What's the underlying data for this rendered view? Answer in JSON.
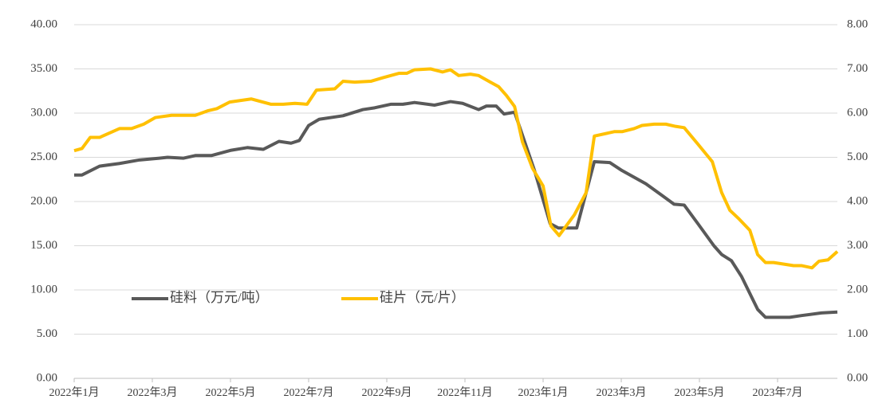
{
  "chart_data": {
    "type": "line",
    "xlim": [
      0,
      19.53
    ],
    "xticks": [
      {
        "value": 0,
        "label": "2022年1月"
      },
      {
        "value": 2,
        "label": "2022年3月"
      },
      {
        "value": 4,
        "label": "2022年5月"
      },
      {
        "value": 6,
        "label": "2022年7月"
      },
      {
        "value": 8,
        "label": "2022年9月"
      },
      {
        "value": 10,
        "label": "2022年11月"
      },
      {
        "value": 12,
        "label": "2023年1月"
      },
      {
        "value": 14,
        "label": "2023年3月"
      },
      {
        "value": 16,
        "label": "2023年5月"
      },
      {
        "value": 18,
        "label": "2023年7月"
      }
    ],
    "ylim": [
      0,
      40
    ],
    "yticks": [
      {
        "value": 0,
        "label": "0.00"
      },
      {
        "value": 5,
        "label": "5.00"
      },
      {
        "value": 10,
        "label": "10.00"
      },
      {
        "value": 15,
        "label": "15.00"
      },
      {
        "value": 20,
        "label": "20.00"
      },
      {
        "value": 25,
        "label": "25.00"
      },
      {
        "value": 30,
        "label": "30.00"
      },
      {
        "value": 35,
        "label": "35.00"
      },
      {
        "value": 40,
        "label": "40.00"
      }
    ],
    "y2lim": [
      0,
      8
    ],
    "y2ticks": [
      {
        "value": 0,
        "label": "0.00"
      },
      {
        "value": 1,
        "label": "1.00"
      },
      {
        "value": 2,
        "label": "2.00"
      },
      {
        "value": 3,
        "label": "3.00"
      },
      {
        "value": 4,
        "label": "4.00"
      },
      {
        "value": 5,
        "label": "5.00"
      },
      {
        "value": 6,
        "label": "6.00"
      },
      {
        "value": 7,
        "label": "7.00"
      },
      {
        "value": 8,
        "label": "8.00"
      }
    ],
    "grid": true,
    "series": [
      {
        "name": "硅料（万元/吨）",
        "color": "#595959",
        "axis": "y",
        "x": [
          0,
          0.2,
          0.65,
          1.16,
          1.67,
          2.18,
          2.39,
          2.8,
          3.1,
          3.51,
          4.02,
          4.43,
          4.84,
          5.24,
          5.55,
          5.76,
          6.0,
          6.27,
          6.88,
          7.39,
          7.69,
          8.1,
          8.41,
          8.71,
          9.22,
          9.63,
          9.94,
          10.35,
          10.55,
          10.8,
          11.0,
          11.27,
          11.78,
          12.18,
          12.39,
          12.86,
          13.31,
          13.71,
          14.02,
          14.63,
          15.04,
          15.35,
          15.61,
          15.96,
          16.37,
          16.57,
          16.82,
          17.08,
          17.49,
          17.69,
          18.31,
          18.61,
          19.12,
          19.53
        ],
        "values": [
          23.0,
          23.0,
          24.0,
          24.3,
          24.7,
          24.9,
          25.0,
          24.9,
          25.2,
          25.2,
          25.8,
          26.1,
          25.9,
          26.8,
          26.6,
          26.9,
          28.6,
          29.3,
          29.7,
          30.4,
          30.6,
          31.0,
          31.0,
          31.2,
          30.9,
          31.3,
          31.1,
          30.4,
          30.8,
          30.8,
          29.9,
          30.1,
          23.5,
          17.5,
          17.0,
          17.0,
          24.5,
          24.4,
          23.5,
          22.0,
          20.7,
          19.7,
          19.6,
          17.5,
          15.0,
          14.0,
          13.3,
          11.5,
          7.8,
          6.9,
          6.9,
          7.1,
          7.4,
          7.5
        ]
      },
      {
        "name": "硅片（元/片）",
        "color": "#ffc000",
        "axis": "y2",
        "x": [
          0,
          0.2,
          0.41,
          0.65,
          1.16,
          1.47,
          1.78,
          2.08,
          2.49,
          3.1,
          3.41,
          3.65,
          3.98,
          4.53,
          5.04,
          5.35,
          5.65,
          5.96,
          6.2,
          6.67,
          6.88,
          7.18,
          7.59,
          7.9,
          8.31,
          8.51,
          8.71,
          9.12,
          9.43,
          9.63,
          9.84,
          10.14,
          10.35,
          10.65,
          10.86,
          11.06,
          11.27,
          11.47,
          11.73,
          12.0,
          12.2,
          12.41,
          12.8,
          13.1,
          13.31,
          13.82,
          14.02,
          14.33,
          14.53,
          14.84,
          15.14,
          15.39,
          15.61,
          15.96,
          16.33,
          16.57,
          16.78,
          17.02,
          17.29,
          17.49,
          17.69,
          17.9,
          18.41,
          18.61,
          18.88,
          19.06,
          19.29,
          19.53
        ],
        "values": [
          5.15,
          5.2,
          5.45,
          5.45,
          5.65,
          5.65,
          5.75,
          5.9,
          5.95,
          5.95,
          6.05,
          6.1,
          6.25,
          6.32,
          6.2,
          6.2,
          6.22,
          6.2,
          6.52,
          6.55,
          6.72,
          6.7,
          6.72,
          6.8,
          6.9,
          6.9,
          6.98,
          7.0,
          6.93,
          6.98,
          6.85,
          6.88,
          6.85,
          6.7,
          6.6,
          6.4,
          6.15,
          5.35,
          4.75,
          4.35,
          3.45,
          3.23,
          3.7,
          4.2,
          5.48,
          5.58,
          5.58,
          5.65,
          5.72,
          5.75,
          5.75,
          5.7,
          5.67,
          5.3,
          4.9,
          4.2,
          3.8,
          3.6,
          3.35,
          2.8,
          2.62,
          2.62,
          2.55,
          2.55,
          2.5,
          2.65,
          2.68,
          2.87
        ]
      }
    ]
  }
}
